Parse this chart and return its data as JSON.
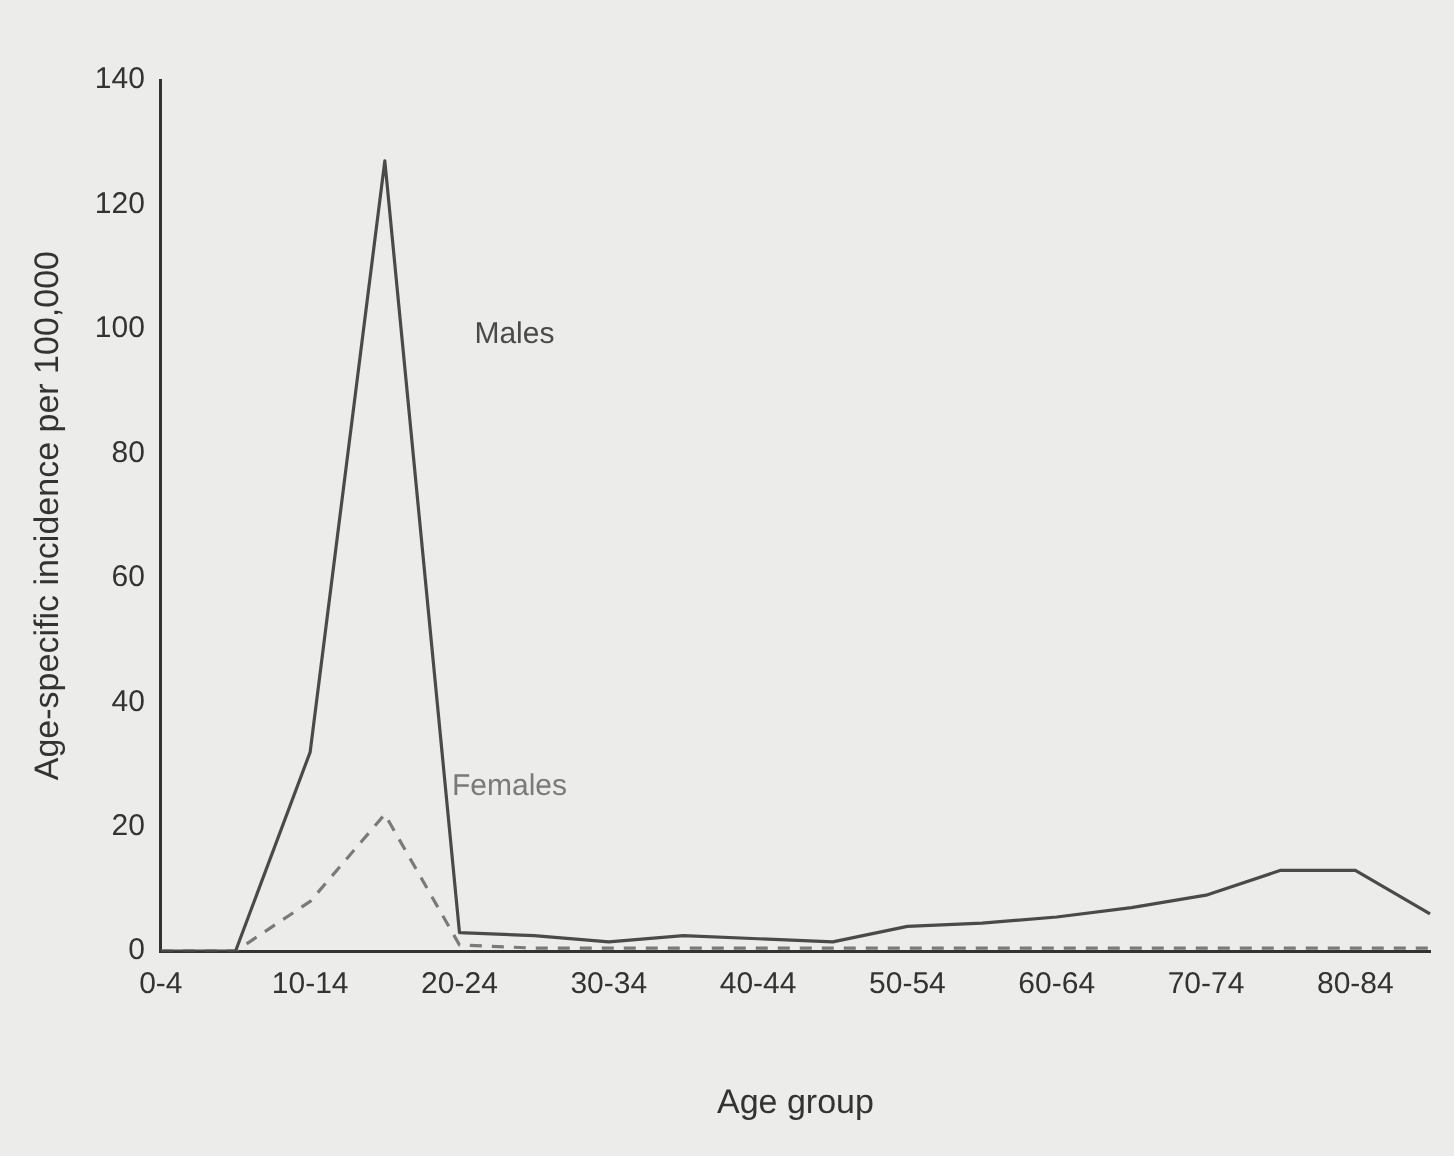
{
  "chart_data": {
    "type": "line",
    "xlabel": "Age group",
    "ylabel": "Age-specific incidence per 100,000",
    "categories": [
      "0-4",
      null,
      "10-14",
      null,
      "20-24",
      null,
      "30-34",
      null,
      "40-44",
      null,
      "50-54",
      null,
      "60-64",
      null,
      "70-74",
      null,
      "80-84",
      null
    ],
    "series": [
      {
        "name": "Males",
        "color": "#4a4a4a",
        "line_style": "solid",
        "values": [
          0,
          0,
          32,
          127,
          3,
          2.5,
          1.5,
          2.5,
          2,
          1.5,
          4,
          4.5,
          5.5,
          7,
          9,
          13,
          13,
          6
        ]
      },
      {
        "name": "Females",
        "color": "#7a7a7a",
        "line_style": "dashed",
        "values": [
          0,
          0,
          8,
          22,
          1,
          0.5,
          0.5,
          0.5,
          0.5,
          0.5,
          0.5,
          0.5,
          0.5,
          0.5,
          0.5,
          0.5,
          0.5,
          0.5
        ]
      }
    ],
    "ylim": [
      0,
      140
    ],
    "yticks": [
      0,
      20,
      40,
      60,
      80,
      100,
      120,
      140
    ],
    "grid": false,
    "legend": false,
    "marker": "none"
  }
}
